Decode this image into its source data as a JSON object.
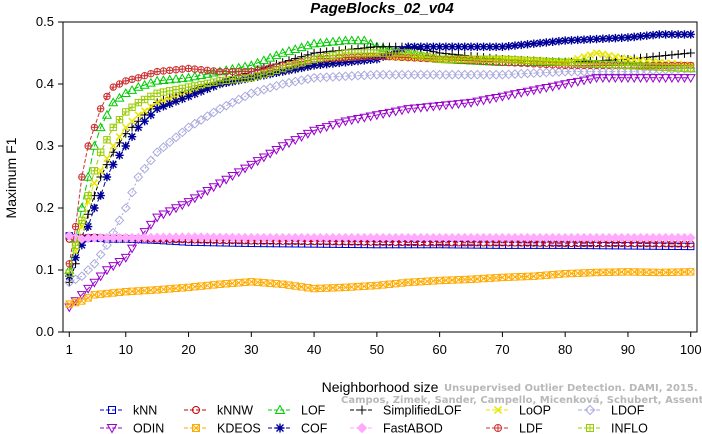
{
  "chart_data": {
    "type": "line",
    "title": "PageBlocks_02_v04",
    "xlabel": "Neighborhood size",
    "ylabel": "Maximum F1",
    "xlim": [
      0,
      101
    ],
    "ylim": [
      0,
      0.5
    ],
    "x_ticks": [
      1,
      10,
      20,
      30,
      40,
      50,
      60,
      70,
      80,
      90,
      100
    ],
    "y_ticks": [
      0.0,
      0.1,
      0.2,
      0.3,
      0.4,
      0.5
    ],
    "y_tick_labels": [
      "0.0",
      "0.1",
      "0.2",
      "0.3",
      "0.4",
      "0.5"
    ],
    "grid": false,
    "legend_position": "bottom",
    "watermark": [
      "Unsupervised Outlier Detection. DAMI, 2015.",
      "Campos, Zimek, Sander, Campello, Micenková, Schubert, Assent, Houle"
    ],
    "series": [
      {
        "name": "kNN",
        "color": "#0000cc",
        "marker": "square",
        "points": [
          [
            1,
            0.155
          ],
          [
            2,
            0.152
          ],
          [
            3,
            0.15
          ],
          [
            5,
            0.152
          ],
          [
            7,
            0.15
          ],
          [
            10,
            0.15
          ],
          [
            15,
            0.148
          ],
          [
            20,
            0.145
          ],
          [
            30,
            0.143
          ],
          [
            40,
            0.142
          ],
          [
            50,
            0.141
          ],
          [
            60,
            0.141
          ],
          [
            70,
            0.14
          ],
          [
            80,
            0.14
          ],
          [
            90,
            0.139
          ],
          [
            100,
            0.138
          ]
        ]
      },
      {
        "name": "kNNW",
        "color": "#cc0000",
        "marker": "circle",
        "points": [
          [
            1,
            0.15
          ],
          [
            2,
            0.15
          ],
          [
            3,
            0.152
          ],
          [
            5,
            0.153
          ],
          [
            7,
            0.152
          ],
          [
            10,
            0.152
          ],
          [
            15,
            0.15
          ],
          [
            20,
            0.149
          ],
          [
            30,
            0.147
          ],
          [
            40,
            0.146
          ],
          [
            50,
            0.145
          ],
          [
            60,
            0.144
          ],
          [
            70,
            0.144
          ],
          [
            80,
            0.143
          ],
          [
            90,
            0.143
          ],
          [
            100,
            0.142
          ]
        ]
      },
      {
        "name": "LOF",
        "color": "#00cc00",
        "marker": "triangle-up",
        "points": [
          [
            1,
            0.1
          ],
          [
            2,
            0.15
          ],
          [
            3,
            0.2
          ],
          [
            4,
            0.25
          ],
          [
            5,
            0.3
          ],
          [
            6,
            0.33
          ],
          [
            7,
            0.35
          ],
          [
            8,
            0.37
          ],
          [
            10,
            0.385
          ],
          [
            12,
            0.395
          ],
          [
            15,
            0.405
          ],
          [
            20,
            0.41
          ],
          [
            25,
            0.42
          ],
          [
            30,
            0.43
          ],
          [
            35,
            0.45
          ],
          [
            40,
            0.465
          ],
          [
            45,
            0.47
          ],
          [
            48,
            0.47
          ],
          [
            50,
            0.46
          ],
          [
            55,
            0.45
          ],
          [
            60,
            0.44
          ],
          [
            70,
            0.435
          ],
          [
            80,
            0.435
          ],
          [
            90,
            0.43
          ],
          [
            100,
            0.425
          ]
        ]
      },
      {
        "name": "SimplifiedLOF",
        "color": "#000000",
        "marker": "plus",
        "points": [
          [
            1,
            0.08
          ],
          [
            2,
            0.11
          ],
          [
            3,
            0.15
          ],
          [
            4,
            0.19
          ],
          [
            5,
            0.22
          ],
          [
            6,
            0.25
          ],
          [
            7,
            0.27
          ],
          [
            8,
            0.29
          ],
          [
            10,
            0.32
          ],
          [
            12,
            0.34
          ],
          [
            15,
            0.37
          ],
          [
            20,
            0.39
          ],
          [
            25,
            0.405
          ],
          [
            30,
            0.42
          ],
          [
            35,
            0.435
          ],
          [
            40,
            0.45
          ],
          [
            45,
            0.455
          ],
          [
            50,
            0.46
          ],
          [
            55,
            0.46
          ],
          [
            60,
            0.45
          ],
          [
            70,
            0.44
          ],
          [
            80,
            0.435
          ],
          [
            90,
            0.44
          ],
          [
            100,
            0.45
          ]
        ]
      },
      {
        "name": "LoOP",
        "color": "#e6e600",
        "marker": "cross",
        "points": [
          [
            1,
            0.09
          ],
          [
            2,
            0.13
          ],
          [
            3,
            0.17
          ],
          [
            4,
            0.21
          ],
          [
            5,
            0.24
          ],
          [
            6,
            0.26
          ],
          [
            7,
            0.28
          ],
          [
            8,
            0.3
          ],
          [
            10,
            0.33
          ],
          [
            12,
            0.35
          ],
          [
            15,
            0.37
          ],
          [
            20,
            0.385
          ],
          [
            25,
            0.4
          ],
          [
            30,
            0.41
          ],
          [
            35,
            0.42
          ],
          [
            40,
            0.43
          ],
          [
            45,
            0.44
          ],
          [
            50,
            0.445
          ],
          [
            60,
            0.44
          ],
          [
            70,
            0.44
          ],
          [
            80,
            0.435
          ],
          [
            85,
            0.45
          ],
          [
            90,
            0.44
          ],
          [
            100,
            0.43
          ]
        ]
      },
      {
        "name": "LDOF",
        "color": "#aaaadd",
        "marker": "diamond",
        "points": [
          [
            1,
            0.08
          ],
          [
            3,
            0.09
          ],
          [
            5,
            0.11
          ],
          [
            7,
            0.14
          ],
          [
            9,
            0.18
          ],
          [
            10,
            0.2
          ],
          [
            12,
            0.25
          ],
          [
            15,
            0.29
          ],
          [
            20,
            0.33
          ],
          [
            25,
            0.36
          ],
          [
            30,
            0.385
          ],
          [
            35,
            0.4
          ],
          [
            40,
            0.41
          ],
          [
            50,
            0.415
          ],
          [
            60,
            0.415
          ],
          [
            70,
            0.415
          ],
          [
            80,
            0.42
          ],
          [
            90,
            0.42
          ],
          [
            100,
            0.425
          ]
        ]
      },
      {
        "name": "ODIN",
        "color": "#9900cc",
        "marker": "triangle-down",
        "points": [
          [
            1,
            0.04
          ],
          [
            3,
            0.06
          ],
          [
            5,
            0.08
          ],
          [
            7,
            0.1
          ],
          [
            10,
            0.12
          ],
          [
            12,
            0.15
          ],
          [
            15,
            0.185
          ],
          [
            20,
            0.21
          ],
          [
            25,
            0.24
          ],
          [
            30,
            0.27
          ],
          [
            35,
            0.3
          ],
          [
            40,
            0.325
          ],
          [
            45,
            0.34
          ],
          [
            50,
            0.35
          ],
          [
            55,
            0.36
          ],
          [
            60,
            0.365
          ],
          [
            65,
            0.37
          ],
          [
            70,
            0.38
          ],
          [
            75,
            0.39
          ],
          [
            80,
            0.4
          ],
          [
            85,
            0.41
          ],
          [
            90,
            0.41
          ],
          [
            95,
            0.41
          ],
          [
            100,
            0.41
          ]
        ]
      },
      {
        "name": "KDEOS",
        "color": "#ffaa00",
        "marker": "square-x",
        "points": [
          [
            1,
            0.045
          ],
          [
            3,
            0.05
          ],
          [
            5,
            0.06
          ],
          [
            7,
            0.062
          ],
          [
            10,
            0.065
          ],
          [
            15,
            0.068
          ],
          [
            20,
            0.072
          ],
          [
            25,
            0.077
          ],
          [
            30,
            0.081
          ],
          [
            35,
            0.077
          ],
          [
            40,
            0.07
          ],
          [
            45,
            0.072
          ],
          [
            50,
            0.075
          ],
          [
            55,
            0.08
          ],
          [
            60,
            0.083
          ],
          [
            65,
            0.085
          ],
          [
            70,
            0.088
          ],
          [
            75,
            0.09
          ],
          [
            80,
            0.094
          ],
          [
            85,
            0.096
          ],
          [
            90,
            0.097
          ],
          [
            95,
            0.096
          ],
          [
            100,
            0.097
          ]
        ]
      },
      {
        "name": "COF",
        "color": "#000099",
        "marker": "asterisk",
        "points": [
          [
            1,
            0.09
          ],
          [
            2,
            0.12
          ],
          [
            3,
            0.14
          ],
          [
            4,
            0.17
          ],
          [
            5,
            0.2
          ],
          [
            6,
            0.22
          ],
          [
            7,
            0.25
          ],
          [
            8,
            0.27
          ],
          [
            10,
            0.3
          ],
          [
            12,
            0.33
          ],
          [
            15,
            0.36
          ],
          [
            20,
            0.38
          ],
          [
            25,
            0.4
          ],
          [
            30,
            0.41
          ],
          [
            35,
            0.42
          ],
          [
            40,
            0.43
          ],
          [
            50,
            0.44
          ],
          [
            55,
            0.46
          ],
          [
            60,
            0.46
          ],
          [
            70,
            0.46
          ],
          [
            80,
            0.47
          ],
          [
            90,
            0.475
          ],
          [
            95,
            0.48
          ],
          [
            100,
            0.48
          ]
        ]
      },
      {
        "name": "FastABOD",
        "color": "#ffaaff",
        "marker": "diamond-filled",
        "points": [
          [
            1,
            0.155
          ],
          [
            3,
            0.15
          ],
          [
            5,
            0.152
          ],
          [
            10,
            0.152
          ],
          [
            20,
            0.153
          ],
          [
            30,
            0.152
          ],
          [
            40,
            0.152
          ],
          [
            50,
            0.152
          ],
          [
            60,
            0.152
          ],
          [
            70,
            0.152
          ],
          [
            80,
            0.152
          ],
          [
            90,
            0.152
          ],
          [
            100,
            0.152
          ]
        ]
      },
      {
        "name": "LDF",
        "color": "#cc3333",
        "marker": "circle-plus",
        "points": [
          [
            1,
            0.11
          ],
          [
            2,
            0.17
          ],
          [
            3,
            0.25
          ],
          [
            4,
            0.3
          ],
          [
            5,
            0.33
          ],
          [
            6,
            0.36
          ],
          [
            7,
            0.38
          ],
          [
            8,
            0.395
          ],
          [
            10,
            0.405
          ],
          [
            12,
            0.41
          ],
          [
            15,
            0.42
          ],
          [
            20,
            0.425
          ],
          [
            25,
            0.42
          ],
          [
            30,
            0.42
          ],
          [
            35,
            0.43
          ],
          [
            40,
            0.44
          ],
          [
            50,
            0.445
          ],
          [
            60,
            0.44
          ],
          [
            70,
            0.435
          ],
          [
            80,
            0.43
          ],
          [
            90,
            0.43
          ],
          [
            100,
            0.43
          ]
        ]
      },
      {
        "name": "INFLO",
        "color": "#99cc00",
        "marker": "square-cross",
        "points": [
          [
            1,
            0.095
          ],
          [
            2,
            0.14
          ],
          [
            3,
            0.18
          ],
          [
            4,
            0.22
          ],
          [
            5,
            0.26
          ],
          [
            6,
            0.29
          ],
          [
            7,
            0.31
          ],
          [
            8,
            0.33
          ],
          [
            10,
            0.355
          ],
          [
            12,
            0.37
          ],
          [
            15,
            0.385
          ],
          [
            20,
            0.395
          ],
          [
            25,
            0.405
          ],
          [
            30,
            0.41
          ],
          [
            35,
            0.425
          ],
          [
            40,
            0.44
          ],
          [
            45,
            0.45
          ],
          [
            50,
            0.45
          ],
          [
            55,
            0.45
          ],
          [
            60,
            0.44
          ],
          [
            70,
            0.44
          ],
          [
            80,
            0.435
          ],
          [
            90,
            0.43
          ],
          [
            100,
            0.425
          ]
        ]
      }
    ]
  }
}
